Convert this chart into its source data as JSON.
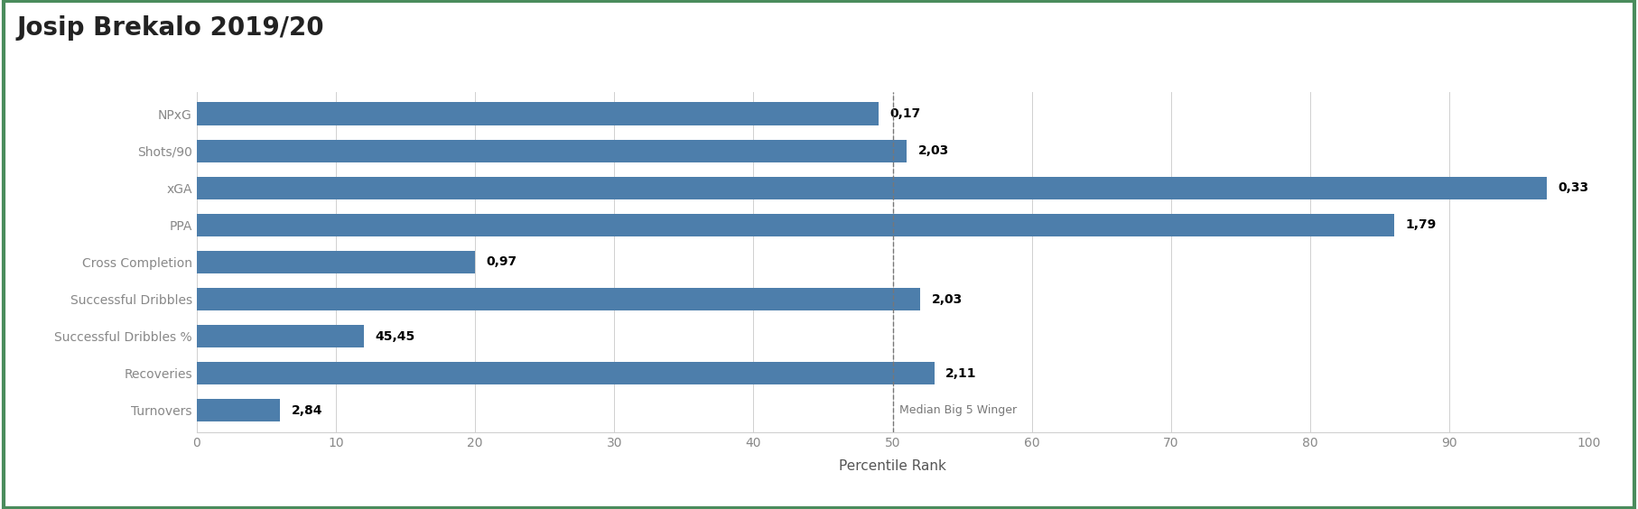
{
  "title": "Josip Brekalo 2019/20",
  "categories": [
    "NPxG",
    "Shots/90",
    "xGA",
    "PPA",
    "Cross Completion",
    "Successful Dribbles",
    "Successful Dribbles %",
    "Recoveries",
    "Turnovers"
  ],
  "percentile_values": [
    49,
    51,
    97,
    86,
    20,
    52,
    12,
    53,
    6
  ],
  "labels": [
    "0,17",
    "2,03",
    "0,33",
    "1,79",
    "0,97",
    "2,03",
    "45,45",
    "2,11",
    "2,84"
  ],
  "bar_color": "#4d7eab",
  "median_line_x": 50,
  "median_label": "Median Big 5 Winger",
  "xlabel": "Percentile Rank",
  "xlim": [
    0,
    100
  ],
  "xticks": [
    0,
    10,
    20,
    30,
    40,
    50,
    60,
    70,
    80,
    90,
    100
  ],
  "background_color": "#ffffff",
  "title_fontsize": 20,
  "label_fontsize": 10,
  "tick_fontsize": 10,
  "median_line_color": "#777777",
  "bar_height": 0.62,
  "grid_color": "#d0d0d0",
  "border_color": "#4a8c5c",
  "ylabel_color": "#888888",
  "xlabel_color": "#555555"
}
